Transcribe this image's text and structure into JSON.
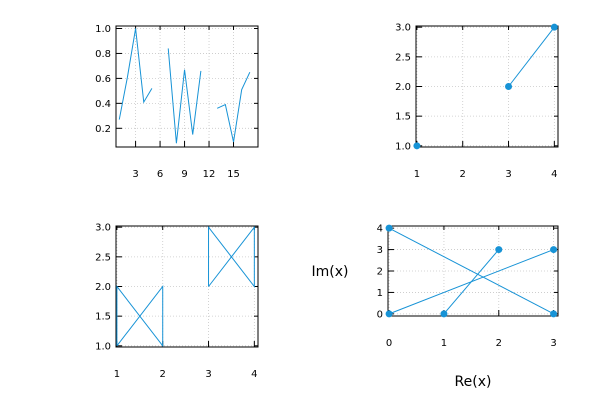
{
  "colors": {
    "series": "#1793d6",
    "axis": "#000000",
    "grid": "#c8c8c8"
  },
  "chart_data": [
    {
      "id": "top-left",
      "type": "line",
      "xlim": [
        0.6,
        18.0
      ],
      "ylim": [
        0.05,
        1.02
      ],
      "xticks": [
        3,
        6,
        9,
        12,
        15
      ],
      "xtick_labels": [
        "3",
        "6",
        "9",
        "12",
        "15"
      ],
      "yticks": [
        0.2,
        0.4,
        0.6,
        0.8,
        1.0
      ],
      "ytick_labels": [
        "0.2",
        "0.4",
        "0.6",
        "0.8",
        "1.0"
      ],
      "grid": true,
      "xlabel": "",
      "ylabel": "",
      "markers": false,
      "segments": [
        [
          [
            1,
            0.27
          ],
          [
            2,
            0.61
          ],
          [
            3,
            1.0
          ],
          [
            4,
            0.41
          ],
          [
            5,
            0.52
          ]
        ],
        [
          [
            7,
            0.84
          ],
          [
            8,
            0.08
          ],
          [
            9,
            0.67
          ],
          [
            10,
            0.15
          ],
          [
            11,
            0.66
          ]
        ],
        [
          [
            13,
            0.36
          ],
          [
            14,
            0.39
          ],
          [
            15,
            0.09
          ],
          [
            16,
            0.51
          ],
          [
            17,
            0.65
          ]
        ]
      ]
    },
    {
      "id": "top-right",
      "type": "line",
      "xlim": [
        0.98,
        4.08
      ],
      "ylim": [
        0.98,
        3.02
      ],
      "xticks": [
        1,
        2,
        3,
        4
      ],
      "xtick_labels": [
        "1",
        "2",
        "3",
        "4"
      ],
      "yticks": [
        1.0,
        1.5,
        2.0,
        2.5,
        3.0
      ],
      "ytick_labels": [
        "1.0",
        "1.5",
        "2.0",
        "2.5",
        "3.0"
      ],
      "grid": true,
      "xlabel": "",
      "ylabel": "",
      "markers": true,
      "segments": [
        [
          [
            1,
            1
          ]
        ],
        [
          [
            3,
            2
          ],
          [
            4,
            3
          ]
        ]
      ]
    },
    {
      "id": "bottom-left",
      "type": "line",
      "xlim": [
        0.98,
        4.08
      ],
      "ylim": [
        0.98,
        3.02
      ],
      "xticks": [
        1,
        2,
        3,
        4
      ],
      "xtick_labels": [
        "1",
        "2",
        "3",
        "4"
      ],
      "yticks": [
        1.0,
        1.5,
        2.0,
        2.5,
        3.0
      ],
      "ytick_labels": [
        "1.0",
        "1.5",
        "2.0",
        "2.5",
        "3.0"
      ],
      "grid": true,
      "xlabel": "",
      "ylabel": "",
      "markers": false,
      "segments": [
        [
          [
            1,
            1
          ],
          [
            1,
            2
          ],
          [
            2,
            1
          ],
          [
            2,
            2
          ],
          [
            1,
            1
          ]
        ],
        [
          [
            3,
            2
          ],
          [
            3,
            3
          ],
          [
            4,
            2
          ],
          [
            4,
            3
          ],
          [
            3,
            2
          ]
        ]
      ]
    },
    {
      "id": "bottom-right",
      "type": "line",
      "xlim": [
        -0.02,
        3.08
      ],
      "ylim": [
        -0.1,
        4.1
      ],
      "xticks": [
        0,
        1,
        2,
        3
      ],
      "xtick_labels": [
        "0",
        "1",
        "2",
        "3"
      ],
      "yticks": [
        0,
        1,
        2,
        3,
        4
      ],
      "ytick_labels": [
        "0",
        "1",
        "2",
        "3",
        "4"
      ],
      "grid": true,
      "xlabel": "Re(x)",
      "ylabel": "Im(x)",
      "markers": true,
      "segments": [
        [
          [
            0,
            0
          ],
          [
            3,
            3
          ]
        ],
        [
          [
            0,
            4
          ],
          [
            3,
            0
          ]
        ],
        [
          [
            1,
            0
          ],
          [
            2,
            3
          ]
        ]
      ]
    }
  ]
}
